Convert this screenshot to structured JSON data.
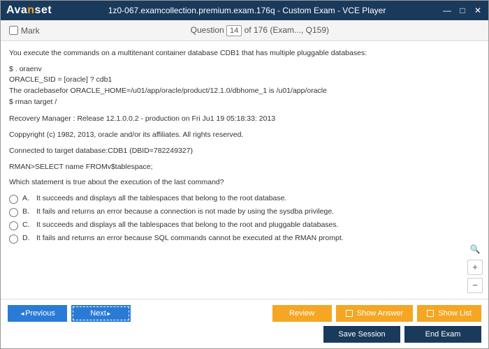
{
  "window": {
    "logo_pre": "Ava",
    "logo_accent": "n",
    "logo_post": "set",
    "title": "1z0-067.examcollection.premium.exam.176q - Custom Exam - VCE Player"
  },
  "subheader": {
    "mark_label": "Mark",
    "question_label": "Question",
    "question_num": "14",
    "question_of": " of 176 (Exam..., Q159)"
  },
  "content": {
    "intro": "You execute the commands on a multitenant container database CDB1 that has multiple pluggable databases:",
    "cmd1": "$ . oraenv",
    "cmd2": "ORACLE_SID = [oracle] ? cdb1",
    "cmd3": "The oraclebasefor ORACLE_HOME=/u01/app/oracle/product/12.1.0/dbhome_1 is /u01/app/oracle",
    "cmd4": "$ rman target /",
    "line5": "Recovery Manager : Release 12.1.0.0.2 - production on Fri Ju1 19 05:18:33: 2013",
    "line6": "Coppyright (c) 1982, 2013, oracle and/or its affiliates. All rights reserved.",
    "line7": "Connected to target database:CDB1 (DBID=782249327)",
    "line8": "RMAN>SELECT name FROMv$tablespace;",
    "question": "Which statement is true about the execution of the last command?"
  },
  "answers": {
    "a": {
      "letter": "A.",
      "text": "It succeeds and displays all the tablespaces that belong to the root database."
    },
    "b": {
      "letter": "B.",
      "text": "It fails and returns an error because a connection is not made by using the sysdba privilege."
    },
    "c": {
      "letter": "C.",
      "text": "It succeeds and displays all the tablespaces that belong to the root and pluggable databases."
    },
    "d": {
      "letter": "D.",
      "text": "It fails and returns an error because SQL commands cannot be executed at the RMAN prompt."
    }
  },
  "footer": {
    "previous": "Previous",
    "next": "Next",
    "review": "Review",
    "show_answer": "Show Answer",
    "show_list": "Show List",
    "save_session": "Save Session",
    "end_exam": "End Exam"
  }
}
